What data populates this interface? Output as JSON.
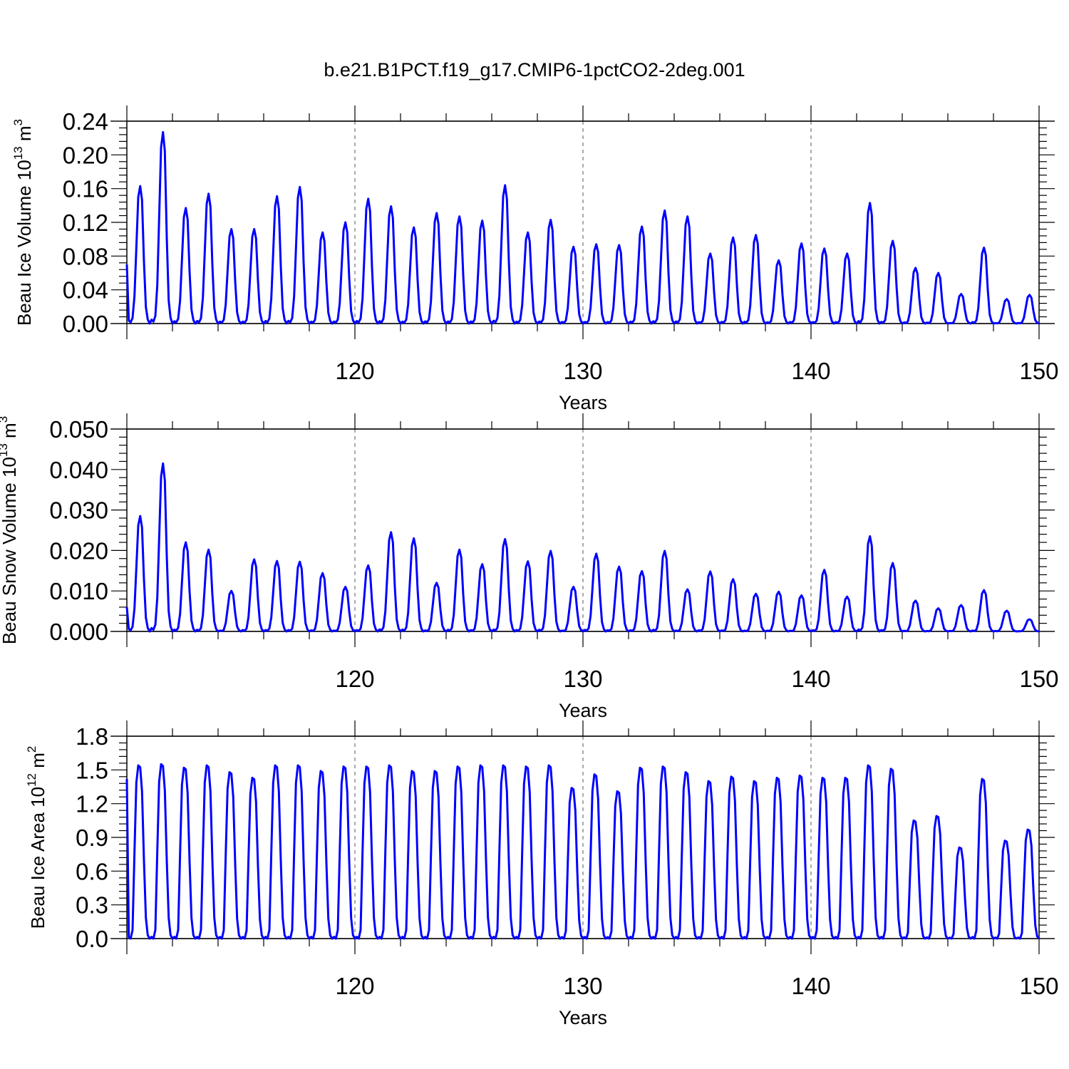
{
  "title": "b.e21.B1PCT.f19_g17.CMIP6-1pctCO2-2deg.001",
  "colors": {
    "series": "#0000ff",
    "grid": "#555555",
    "axis": "#000000"
  },
  "chart_data": [
    {
      "type": "line",
      "ylabel": {
        "main": "Beau Ice Volume 10",
        "sup1": "13",
        "mid": " m",
        "sup2": "3"
      },
      "xlabel": "Years",
      "xlim": [
        110,
        150
      ],
      "ylim": [
        0,
        0.24
      ],
      "yticks": [
        "0.00",
        "0.04",
        "0.08",
        "0.12",
        "0.16",
        "0.20",
        "0.24"
      ],
      "ytick_values": [
        0,
        0.04,
        0.08,
        0.12,
        0.16,
        0.2,
        0.24
      ],
      "xticks": [
        "120",
        "130",
        "140",
        "150"
      ],
      "xtick_values": [
        120,
        130,
        140,
        150
      ],
      "grid": "dashed vertical at major x ticks",
      "series": [
        {
          "peaks": [
            0.163,
            0.227,
            0.137,
            0.154,
            0.112,
            0.112,
            0.151,
            0.162,
            0.108,
            0.12,
            0.148,
            0.139,
            0.114,
            0.131,
            0.127,
            0.122,
            0.164,
            0.108,
            0.123,
            0.091,
            0.094,
            0.093,
            0.115,
            0.134,
            0.127,
            0.083,
            0.102,
            0.105,
            0.075,
            0.095,
            0.089,
            0.083,
            0.143,
            0.098,
            0.066,
            0.06,
            0.035,
            0.09,
            0.029,
            0.034
          ],
          "start": 0.07
        }
      ]
    },
    {
      "type": "line",
      "ylabel": {
        "main": "Beau Snow Volume 10",
        "sup1": "13",
        "mid": " m",
        "sup2": "3"
      },
      "xlabel": "Years",
      "xlim": [
        110,
        150
      ],
      "ylim": [
        0,
        0.05
      ],
      "yticks": [
        "0.000",
        "0.010",
        "0.020",
        "0.030",
        "0.040",
        "0.050"
      ],
      "ytick_values": [
        0,
        0.01,
        0.02,
        0.03,
        0.04,
        0.05
      ],
      "xticks": [
        "120",
        "130",
        "140",
        "150"
      ],
      "xtick_values": [
        120,
        130,
        140,
        150
      ],
      "grid": "dashed vertical at major x ticks",
      "series": [
        {
          "peaks": [
            0.0285,
            0.0415,
            0.022,
            0.0202,
            0.01,
            0.0178,
            0.0174,
            0.0172,
            0.0144,
            0.011,
            0.0163,
            0.0245,
            0.023,
            0.012,
            0.0202,
            0.0166,
            0.0228,
            0.0173,
            0.0199,
            0.011,
            0.0192,
            0.016,
            0.0149,
            0.0199,
            0.0104,
            0.0148,
            0.0129,
            0.0093,
            0.0098,
            0.0089,
            0.0152,
            0.0086,
            0.0235,
            0.0169,
            0.0076,
            0.0057,
            0.0065,
            0.0102,
            0.0051,
            0.003
          ],
          "start": 0.006
        }
      ]
    },
    {
      "type": "line",
      "ylabel": {
        "main": "Beau Ice Area 10",
        "sup1": "12",
        "mid": " m",
        "sup2": "2"
      },
      "xlabel": "Years",
      "xlim": [
        110,
        150
      ],
      "ylim": [
        0,
        1.8
      ],
      "yticks": [
        "0.0",
        "0.3",
        "0.6",
        "0.9",
        "1.2",
        "1.5",
        "1.8"
      ],
      "ytick_values": [
        0,
        0.3,
        0.6,
        0.9,
        1.2,
        1.5,
        1.8
      ],
      "xticks": [
        "120",
        "130",
        "140",
        "150"
      ],
      "xtick_values": [
        120,
        130,
        140,
        150
      ],
      "grid": "dashed vertical at major x ticks",
      "series": [
        {
          "peaks": [
            1.54,
            1.55,
            1.52,
            1.54,
            1.48,
            1.43,
            1.54,
            1.54,
            1.49,
            1.53,
            1.53,
            1.54,
            1.49,
            1.49,
            1.53,
            1.54,
            1.54,
            1.53,
            1.54,
            1.34,
            1.46,
            1.31,
            1.52,
            1.53,
            1.48,
            1.4,
            1.44,
            1.4,
            1.43,
            1.45,
            1.43,
            1.43,
            1.54,
            1.51,
            1.05,
            1.09,
            0.81,
            1.42,
            0.87,
            0.97
          ],
          "start": 1.42
        }
      ]
    }
  ]
}
